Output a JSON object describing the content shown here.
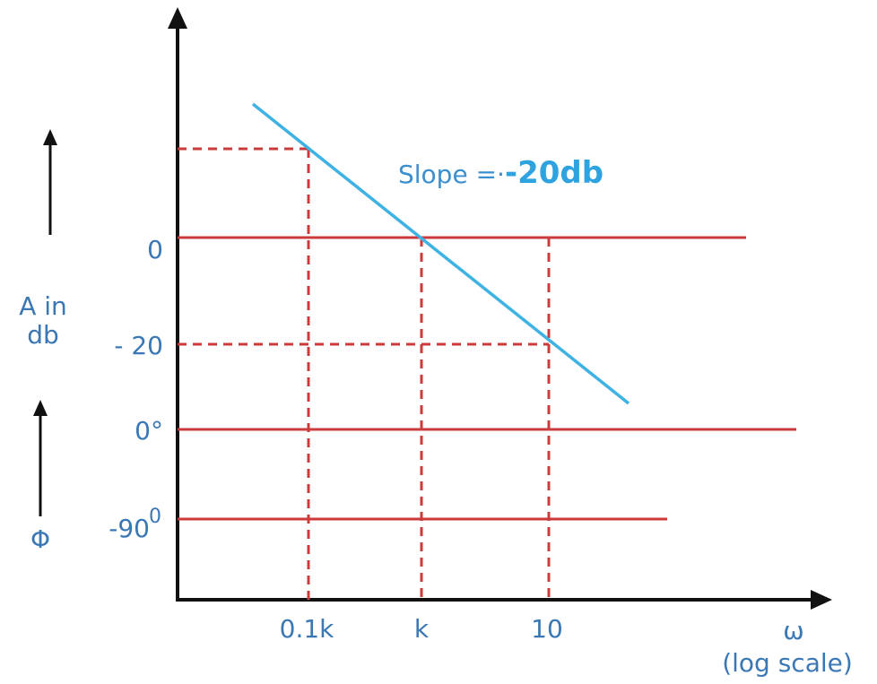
{
  "colors": {
    "axis": "#111111",
    "grid": "#cc3b3b",
    "slope_line": "#3fb2e4",
    "label": "#3a78b5",
    "slope_value": "#2ea3e0"
  },
  "labels": {
    "y_top_0": "0",
    "y_minus_20": "- 20",
    "y_phase_0": "0°",
    "y_phase_minus90": "-90",
    "y_phase_minus90_sup": "0",
    "x_01k": "0.1k",
    "x_k": "k",
    "x_10": "10",
    "x_omega": "ω",
    "x_log_scale": "(log scale)",
    "side_amp_line1": "A in",
    "side_amp_line2": "db",
    "side_phase": "Φ",
    "slope_prefix": "Slope =·",
    "slope_value": "-20db"
  },
  "icons": {
    "amp_arrow": "arrow-up-icon",
    "phase_arrow": "arrow-up-icon"
  }
}
